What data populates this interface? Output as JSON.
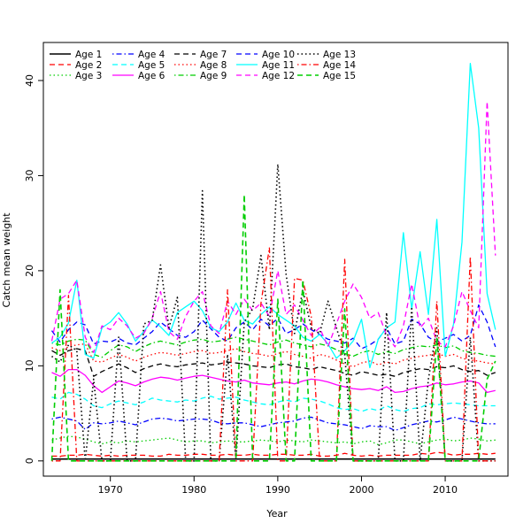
{
  "chart_data": {
    "type": "line",
    "title": "",
    "xlabel": "Year",
    "ylabel": "Catch mean weight",
    "xlim": [
      1962,
      2017.5
    ],
    "ylim": [
      -1.6,
      44
    ],
    "x_ticks": [
      1970,
      1980,
      1990,
      2000,
      2010
    ],
    "y_ticks": [
      0,
      10,
      20,
      30,
      40
    ],
    "x_tick_labels": [
      "1970",
      "1980",
      "1990",
      "2000",
      "2010"
    ],
    "y_tick_labels": [
      "0",
      "10",
      "20",
      "30",
      "40"
    ],
    "legend_position": "top-left",
    "x": [
      1963,
      1964,
      1965,
      1966,
      1967,
      1968,
      1969,
      1970,
      1971,
      1972,
      1973,
      1974,
      1975,
      1976,
      1977,
      1978,
      1979,
      1980,
      1981,
      1982,
      1983,
      1984,
      1985,
      1986,
      1987,
      1988,
      1989,
      1990,
      1991,
      1992,
      1993,
      1994,
      1995,
      1996,
      1997,
      1998,
      1999,
      2000,
      2001,
      2002,
      2003,
      2004,
      2005,
      2006,
      2007,
      2008,
      2009,
      2010,
      2011,
      2012,
      2013,
      2014,
      2015,
      2016
    ],
    "series": [
      {
        "name": "Age 1",
        "color": "#000000",
        "dash": "solid",
        "width": 1.6,
        "values": [
          0.2,
          0.2,
          0.2,
          0.2,
          0.2,
          0.2,
          0.2,
          0.2,
          0.2,
          0.2,
          0.2,
          0.2,
          0.2,
          0.2,
          0.2,
          0.2,
          0.2,
          0.2,
          0.2,
          0.2,
          0.2,
          0.2,
          0.2,
          0.2,
          0.2,
          0.2,
          0.2,
          0.2,
          0.2,
          0.2,
          0.2,
          0.2,
          0.2,
          0.2,
          0.2,
          0.2,
          0.2,
          0.2,
          0.2,
          0.2,
          0.2,
          0.2,
          0.2,
          0.2,
          0.2,
          0.2,
          0.2,
          0.2,
          0.2,
          0.2,
          0.2,
          0.2,
          0.2,
          0.2
        ]
      },
      {
        "name": "Age 2",
        "color": "#ff0000",
        "dash": "dashed",
        "width": 1.3,
        "values": [
          0.5,
          0.5,
          0.6,
          0.6,
          0.7,
          0.6,
          0.5,
          0.6,
          0.5,
          0.6,
          0.6,
          0.6,
          0.5,
          0.5,
          0.7,
          0.6,
          0.6,
          0.7,
          0.7,
          0.6,
          0.6,
          0.7,
          0.6,
          0.6,
          0.7,
          0.6,
          0.6,
          0.7,
          0.7,
          0.6,
          0.6,
          0.7,
          0.5,
          0.5,
          0.6,
          0.8,
          0.6,
          0.5,
          0.6,
          0.5,
          0.6,
          0.6,
          0.6,
          0.6,
          0.8,
          0.7,
          0.9,
          0.8,
          0.6,
          0.7,
          0.7,
          0.8,
          0.7,
          0.8
        ]
      },
      {
        "name": "Age 3",
        "color": "#00cd00",
        "dash": "dotted",
        "width": 1.3,
        "values": [
          2.2,
          2.4,
          2.6,
          2.5,
          2.3,
          2.0,
          1.8,
          2.0,
          1.9,
          2.1,
          2.0,
          2.1,
          2.2,
          2.3,
          2.4,
          2.2,
          2.0,
          2.1,
          2.1,
          1.9,
          2.0,
          2.1,
          2.0,
          2.0,
          2.1,
          2.2,
          2.1,
          2.0,
          2.2,
          2.1,
          2.0,
          2.2,
          2.1,
          2.0,
          1.9,
          2.0,
          1.8,
          2.0,
          2.1,
          1.7,
          1.9,
          2.2,
          2.2,
          2.0,
          1.8,
          2.0,
          2.2,
          2.3,
          2.1,
          2.2,
          2.4,
          2.3,
          2.1,
          2.2
        ]
      },
      {
        "name": "Age 4",
        "color": "#0000ff",
        "dash": "dashdot",
        "width": 1.3,
        "values": [
          4.4,
          4.6,
          4.4,
          4.2,
          3.3,
          4.0,
          3.9,
          4.0,
          4.2,
          4.0,
          3.8,
          4.1,
          4.4,
          4.5,
          4.4,
          4.2,
          4.3,
          4.4,
          4.4,
          4.3,
          4.0,
          3.9,
          4.0,
          4.0,
          3.8,
          3.6,
          3.8,
          4.0,
          4.1,
          4.2,
          4.5,
          4.6,
          4.3,
          4.0,
          3.9,
          3.8,
          3.6,
          3.4,
          3.7,
          3.6,
          3.6,
          3.2,
          3.5,
          3.8,
          4.0,
          4.2,
          4.1,
          4.3,
          4.6,
          4.4,
          4.2,
          4.0,
          3.9,
          3.9
        ]
      },
      {
        "name": "Age 5",
        "color": "#00ffff",
        "dash": "dashed",
        "width": 1.3,
        "values": [
          6.7,
          6.5,
          7.2,
          7.0,
          6.5,
          5.8,
          5.6,
          6.0,
          6.3,
          6.1,
          5.9,
          6.2,
          6.6,
          6.4,
          6.3,
          6.2,
          6.4,
          6.3,
          6.6,
          6.8,
          6.5,
          6.6,
          6.7,
          6.4,
          6.2,
          6.0,
          5.9,
          6.2,
          6.4,
          6.2,
          6.6,
          6.5,
          6.3,
          6.0,
          5.6,
          5.4,
          5.5,
          5.2,
          5.5,
          5.3,
          5.8,
          5.4,
          5.2,
          5.5,
          5.6,
          6.0,
          5.9,
          6.0,
          6.1,
          6.0,
          5.9,
          5.8,
          5.8,
          5.8
        ]
      },
      {
        "name": "Age 6",
        "color": "#ff00ff",
        "dash": "solid",
        "width": 1.3,
        "values": [
          9.3,
          8.9,
          9.6,
          9.6,
          9.0,
          7.9,
          7.2,
          7.8,
          8.4,
          8.2,
          7.9,
          8.3,
          8.6,
          8.8,
          8.7,
          8.5,
          8.7,
          8.9,
          9.0,
          8.8,
          8.6,
          8.4,
          8.3,
          8.5,
          8.2,
          8.1,
          8.0,
          8.2,
          8.3,
          8.1,
          8.4,
          8.6,
          8.5,
          8.3,
          8.0,
          7.8,
          7.6,
          7.5,
          7.6,
          7.4,
          7.8,
          7.2,
          7.3,
          7.6,
          7.8,
          7.9,
          8.2,
          8.0,
          8.1,
          8.3,
          8.4,
          8.2,
          7.2,
          7.4
        ]
      },
      {
        "name": "Age 7",
        "color": "#000000",
        "dash": "dashed",
        "width": 1.3,
        "values": [
          11.6,
          11.1,
          11.6,
          11.8,
          11.6,
          8.9,
          9.4,
          9.8,
          10.2,
          9.8,
          9.3,
          9.7,
          10.0,
          10.2,
          10.0,
          9.9,
          10.1,
          10.2,
          10.3,
          10.1,
          10.2,
          10.4,
          10.3,
          10.2,
          10.0,
          9.9,
          9.8,
          10.1,
          10.2,
          9.9,
          9.8,
          9.6,
          9.9,
          9.7,
          9.5,
          9.2,
          9.0,
          9.4,
          9.2,
          9.0,
          9.1,
          8.9,
          9.3,
          9.5,
          9.7,
          9.6,
          9.9,
          9.8,
          10.0,
          9.6,
          9.4,
          9.5,
          9.0,
          9.3
        ]
      },
      {
        "name": "Age 8",
        "color": "#ff0000",
        "dash": "dotted",
        "width": 1.3,
        "values": [
          11.9,
          11.6,
          12.0,
          12.2,
          12.3,
          10.5,
          10.4,
          10.8,
          11.2,
          10.9,
          10.5,
          10.9,
          11.2,
          11.4,
          11.3,
          11.1,
          11.3,
          11.5,
          11.6,
          11.3,
          11.4,
          11.6,
          11.8,
          11.5,
          11.3,
          11.2,
          11.0,
          11.3,
          11.5,
          11.2,
          11.0,
          10.8,
          11.2,
          11.0,
          10.6,
          10.2,
          9.9,
          10.3,
          10.5,
          10.1,
          10.4,
          10.2,
          10.6,
          10.8,
          11.0,
          11.1,
          11.3,
          11.0,
          11.2,
          10.8,
          10.6,
          10.5,
          10.3,
          10.2
        ]
      },
      {
        "name": "Age 9",
        "color": "#00cd00",
        "dash": "dashdot",
        "width": 1.3,
        "values": [
          12.4,
          12.2,
          12.6,
          12.8,
          12.7,
          11.2,
          10.9,
          11.6,
          12.2,
          12.0,
          11.5,
          12.0,
          12.4,
          12.6,
          12.4,
          12.2,
          12.5,
          12.7,
          12.8,
          12.5,
          12.6,
          12.8,
          13.0,
          12.8,
          12.6,
          12.4,
          12.2,
          12.5,
          12.7,
          12.4,
          12.2,
          12.0,
          12.3,
          12.1,
          11.7,
          11.3,
          11.0,
          11.4,
          11.6,
          11.2,
          11.5,
          11.3,
          11.7,
          11.9,
          12.1,
          12.0,
          12.2,
          11.9,
          12.1,
          11.6,
          11.4,
          11.3,
          11.1,
          11.0
        ]
      },
      {
        "name": "Age 10",
        "color": "#0000ff",
        "dash": "dashed",
        "width": 1.3,
        "values": [
          13.7,
          12.5,
          13.8,
          14.6,
          14.3,
          12.3,
          12.6,
          12.5,
          12.9,
          12.4,
          12.2,
          12.9,
          13.6,
          14.6,
          13.9,
          13.2,
          13.0,
          13.6,
          14.8,
          13.9,
          13.0,
          12.6,
          14.0,
          14.6,
          13.8,
          14.9,
          14.2,
          15.0,
          13.4,
          13.8,
          14.4,
          13.8,
          13.3,
          12.8,
          12.6,
          12.4,
          12.9,
          11.8,
          12.2,
          12.8,
          14.0,
          12.3,
          12.6,
          14.9,
          14.4,
          13.0,
          12.5,
          12.9,
          13.3,
          12.6,
          13.2,
          16.4,
          14.6,
          12.0
        ]
      },
      {
        "name": "Age 11",
        "color": "#00ffff",
        "dash": "solid",
        "width": 1.3,
        "values": [
          12.4,
          13.0,
          14.5,
          19.0,
          11.2,
          10.8,
          14.0,
          14.6,
          15.6,
          14.4,
          12.6,
          13.6,
          14.8,
          14.1,
          13.2,
          15.6,
          16.2,
          16.8,
          15.8,
          14.0,
          13.6,
          14.6,
          16.6,
          14.8,
          14.4,
          15.4,
          16.2,
          15.4,
          14.8,
          14.2,
          13.0,
          12.6,
          13.3,
          12.3,
          10.8,
          11.6,
          12.6,
          14.9,
          9.8,
          12.8,
          14.0,
          14.6,
          24.0,
          16.0,
          22.0,
          15.4,
          25.4,
          11.0,
          14.4,
          23.0,
          41.8,
          35.0,
          17.6,
          13.8
        ]
      },
      {
        "name": "Age 12",
        "color": "#ff00ff",
        "dash": "dashed",
        "width": 1.3,
        "values": [
          12.6,
          17.0,
          17.6,
          19.0,
          13.0,
          11.4,
          14.2,
          13.8,
          15.0,
          14.2,
          12.9,
          13.4,
          15.0,
          17.8,
          13.6,
          12.8,
          15.2,
          16.8,
          17.8,
          14.2,
          13.4,
          16.8,
          15.4,
          17.0,
          15.8,
          16.6,
          15.2,
          20.0,
          15.4,
          16.4,
          14.8,
          13.2,
          14.0,
          12.0,
          14.4,
          16.8,
          18.6,
          17.2,
          15.0,
          15.6,
          13.2,
          12.0,
          14.2,
          18.6,
          14.0,
          15.0,
          12.6,
          12.0,
          14.2,
          17.8,
          15.8,
          14.0,
          37.8,
          21.6
        ]
      },
      {
        "name": "Age 13",
        "color": "#000000",
        "dash": "dotted",
        "width": 1.6,
        "values": [
          11.0,
          10.4,
          12.2,
          11.6,
          0.0,
          8.6,
          0.0,
          0.0,
          13.0,
          0.0,
          0.0,
          14.4,
          14.8,
          20.6,
          14.0,
          17.2,
          0.0,
          0.0,
          28.4,
          0.0,
          0.0,
          11.2,
          0.0,
          14.6,
          16.0,
          21.6,
          13.8,
          31.2,
          19.6,
          13.4,
          18.0,
          14.0,
          13.4,
          16.8,
          14.0,
          11.2,
          0.0,
          0.0,
          0.0,
          0.0,
          15.6,
          0.0,
          0.0,
          16.2,
          0.0,
          8.6,
          14.0,
          0.0,
          0.0,
          0.0,
          13.0,
          0.0,
          0.0,
          0.0
        ]
      },
      {
        "name": "Age 14",
        "color": "#ff0000",
        "dash": "dashdot",
        "width": 1.3,
        "values": [
          0.0,
          0.0,
          17.4,
          0.0,
          0.0,
          0.0,
          0.0,
          0.0,
          0.0,
          0.0,
          0.0,
          0.0,
          0.0,
          0.0,
          0.0,
          0.0,
          0.0,
          0.0,
          0.0,
          0.0,
          0.0,
          18.0,
          0.0,
          0.0,
          0.0,
          16.6,
          22.4,
          0.0,
          0.0,
          19.2,
          19.0,
          15.2,
          0.0,
          0.0,
          0.0,
          21.2,
          0.0,
          0.0,
          0.0,
          0.0,
          0.0,
          0.0,
          0.0,
          0.0,
          0.0,
          0.0,
          16.8,
          0.0,
          0.0,
          0.0,
          21.5,
          0.0,
          0.0,
          0.0
        ]
      },
      {
        "name": "Age 15",
        "color": "#00cd00",
        "dash": "dashed",
        "width": 1.6,
        "values": [
          0.0,
          18.0,
          0.0,
          0.0,
          0.0,
          0.0,
          0.0,
          0.0,
          0.0,
          0.0,
          0.0,
          0.0,
          0.0,
          0.0,
          0.0,
          0.0,
          0.0,
          0.0,
          0.0,
          0.0,
          0.0,
          0.0,
          0.0,
          28.0,
          0.0,
          0.0,
          0.0,
          17.0,
          0.0,
          0.0,
          19.0,
          0.0,
          0.0,
          0.0,
          0.0,
          16.0,
          0.0,
          0.0,
          0.0,
          0.0,
          0.0,
          0.0,
          0.0,
          0.0,
          0.0,
          0.0,
          13.0,
          0.0,
          0.0,
          0.0,
          0.0,
          0.0,
          8.6,
          10.5
        ]
      }
    ]
  }
}
